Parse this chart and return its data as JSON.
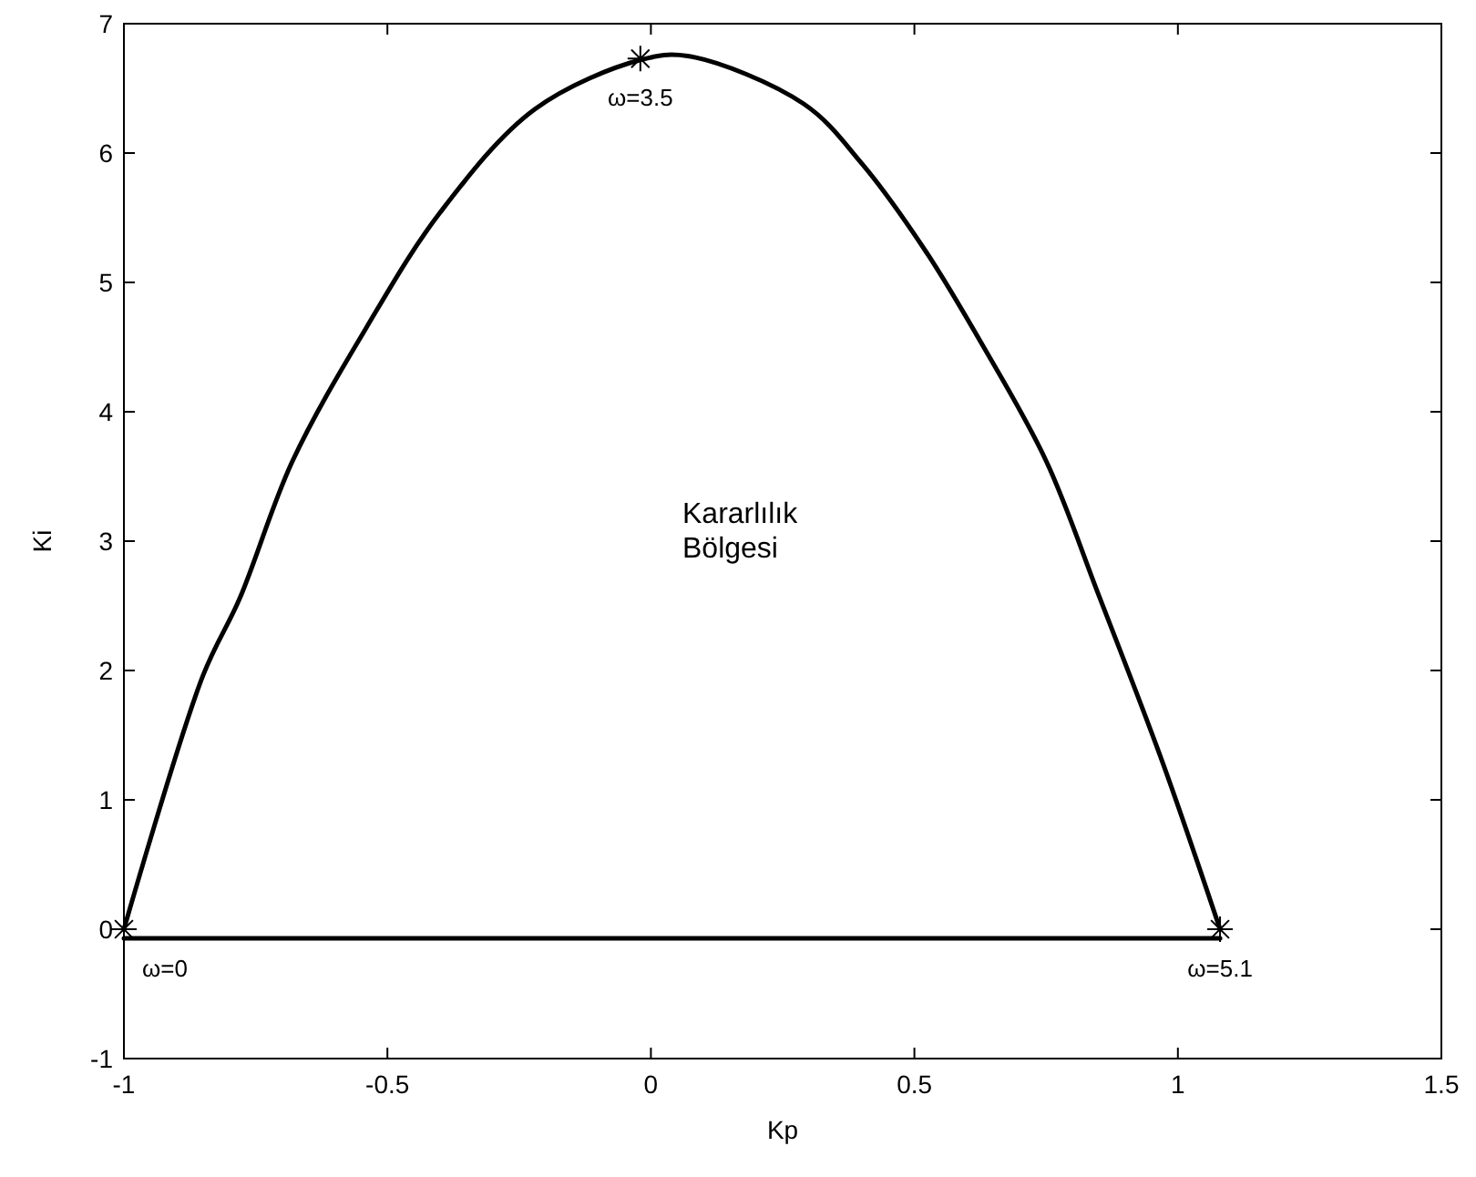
{
  "chart_data": {
    "type": "line",
    "xlabel": "Kp",
    "ylabel": "Ki",
    "xlim": [
      -1,
      1.5
    ],
    "ylim": [
      -1,
      7
    ],
    "xticks": [
      -1,
      -0.5,
      0,
      0.5,
      1,
      1.5
    ],
    "yticks": [
      -1,
      0,
      1,
      2,
      3,
      4,
      5,
      6,
      7
    ],
    "grid": false,
    "series": [
      {
        "color": "#000000",
        "x": [
          -1,
          -0.85,
          -0.78,
          -0.68,
          -0.54,
          -0.4,
          -0.22,
          -0.02,
          0.07,
          0.29,
          0.4,
          0.52,
          0.63,
          0.75,
          0.85,
          0.97,
          1.08
        ],
        "values": [
          0,
          1.96,
          2.56,
          3.62,
          4.65,
          5.54,
          6.34,
          6.72,
          6.75,
          6.38,
          5.92,
          5.25,
          4.51,
          3.62,
          2.58,
          1.3,
          0
        ]
      },
      {
        "color": "#000000",
        "x": [
          -1,
          1.08
        ],
        "values": [
          -0.07,
          -0.07
        ]
      },
      {
        "type": "scatter",
        "color": "#000000",
        "marker": "cross",
        "x": [
          -1,
          -0.02,
          1.08
        ],
        "values": [
          0,
          6.73,
          0
        ]
      }
    ],
    "annotations": [
      {
        "text": "ω=0",
        "x": -1,
        "y": 0
      },
      {
        "text": "ω=3.5",
        "x": -0.02,
        "y": 6.73
      },
      {
        "text": "ω=5.1",
        "x": 1.08,
        "y": 0
      },
      "Kararlılık\nBölgesi"
    ]
  }
}
